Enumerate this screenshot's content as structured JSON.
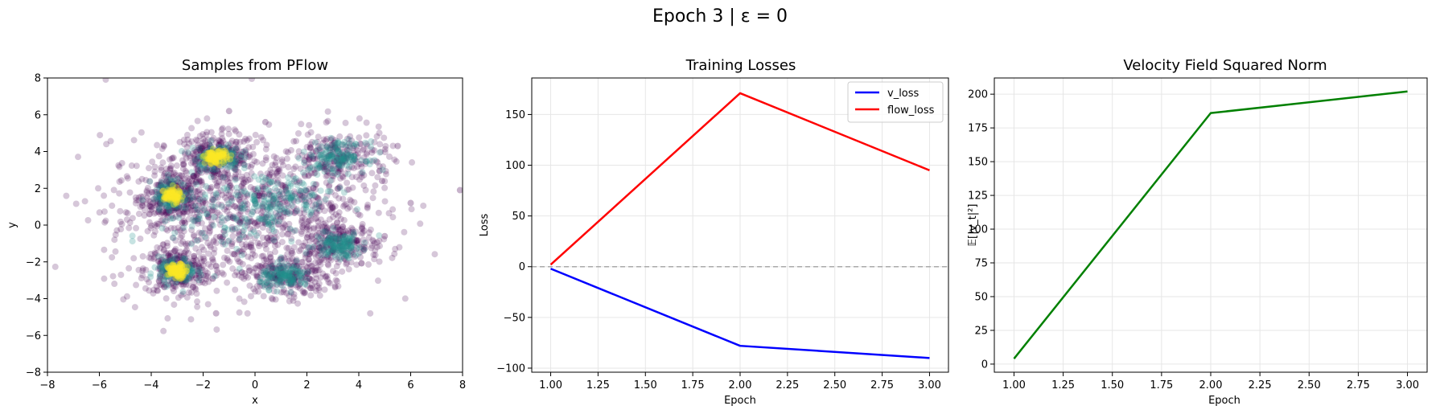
{
  "suptitle": "Epoch 3 | ε = 0",
  "colors": {
    "v_loss": "#0000ff",
    "flow_loss": "#ff0000",
    "velocity": "#008000",
    "zero_line": "#aaaaaa",
    "grid": "#e6e6e6",
    "scatter_low": "#440154",
    "scatter_mid": "#21918c",
    "scatter_high": "#fde725"
  },
  "chart_data": [
    {
      "type": "scatter",
      "title": "Samples from PFlow",
      "xlabel": "x",
      "ylabel": "y",
      "xlim": [
        -8,
        8
      ],
      "ylim": [
        -8,
        8
      ],
      "xticks": [
        "−8",
        "−6",
        "−4",
        "−2",
        "0",
        "2",
        "4",
        "6",
        "8"
      ],
      "yticks": [
        "−8",
        "−6",
        "−4",
        "−2",
        "0",
        "2",
        "4",
        "6",
        "8"
      ],
      "grid": false,
      "colormap": "viridis (density)",
      "clusters": [
        {
          "x": -3.2,
          "y": 1.6,
          "sx": 0.35,
          "sy": 0.45,
          "density": "high"
        },
        {
          "x": -1.5,
          "y": 3.7,
          "sx": 0.5,
          "sy": 0.4,
          "density": "high"
        },
        {
          "x": -3.0,
          "y": -2.5,
          "sx": 0.4,
          "sy": 0.4,
          "density": "high"
        },
        {
          "x": 1.2,
          "y": -2.8,
          "sx": 0.55,
          "sy": 0.35,
          "density": "medium"
        },
        {
          "x": 3.2,
          "y": -1.1,
          "sx": 0.5,
          "sy": 0.4,
          "density": "medium"
        },
        {
          "x": 3.2,
          "y": 3.7,
          "sx": 0.6,
          "sy": 0.45,
          "density": "medium"
        },
        {
          "x": 1.0,
          "y": 1.4,
          "sx": 1.2,
          "sy": 0.8,
          "density": "medium"
        },
        {
          "x": -1.0,
          "y": 0.5,
          "sx": 1.5,
          "sy": 1.3,
          "density": "low"
        }
      ],
      "outliers": [
        {
          "x": 7.9,
          "y": 1.9
        },
        {
          "x": 6.0,
          "y": 1.2
        },
        {
          "x": 5.5,
          "y": 4.3
        },
        {
          "x": -1.0,
          "y": 6.2
        },
        {
          "x": 0.4,
          "y": 5.6
        },
        {
          "x": -1.5,
          "y": -4.8
        },
        {
          "x": 5.0,
          "y": -0.6
        },
        {
          "x": 4.9,
          "y": 2.4
        }
      ]
    },
    {
      "type": "line",
      "title": "Training Losses",
      "xlabel": "Epoch",
      "ylabel": "Loss",
      "x": [
        1.0,
        2.0,
        3.0
      ],
      "xlim": [
        0.9,
        3.1
      ],
      "ylim": [
        -104,
        186
      ],
      "xticks": [
        1.0,
        1.25,
        1.5,
        1.75,
        2.0,
        2.25,
        2.5,
        2.75,
        3.0
      ],
      "xtick_labels": [
        "1.00",
        "1.25",
        "1.50",
        "1.75",
        "2.00",
        "2.25",
        "2.50",
        "2.75",
        "3.00"
      ],
      "yticks": [
        -100,
        -50,
        0,
        50,
        100,
        150
      ],
      "ytick_labels": [
        "−100",
        "−50",
        "0",
        "50",
        "100",
        "150"
      ],
      "grid": true,
      "legend": "top-right",
      "series": [
        {
          "name": "v_loss",
          "values": [
            -2,
            -78,
            -90
          ]
        },
        {
          "name": "flow_loss",
          "values": [
            2,
            171,
            95
          ]
        }
      ],
      "hline": 0
    },
    {
      "type": "line",
      "title": "Velocity Field Squared Norm",
      "xlabel": "Epoch",
      "ylabel": "𝔼[|v_t|²]",
      "x": [
        1.0,
        2.0,
        3.0
      ],
      "xlim": [
        0.9,
        3.1
      ],
      "ylim": [
        -6,
        212
      ],
      "xticks": [
        1.0,
        1.25,
        1.5,
        1.75,
        2.0,
        2.25,
        2.5,
        2.75,
        3.0
      ],
      "xtick_labels": [
        "1.00",
        "1.25",
        "1.50",
        "1.75",
        "2.00",
        "2.25",
        "2.50",
        "2.75",
        "3.00"
      ],
      "yticks": [
        0,
        25,
        50,
        75,
        100,
        125,
        150,
        175,
        200
      ],
      "ytick_labels": [
        "0",
        "25",
        "50",
        "75",
        "100",
        "125",
        "150",
        "175",
        "200"
      ],
      "grid": true,
      "series": [
        {
          "values": [
            4,
            186,
            202
          ]
        }
      ]
    }
  ]
}
